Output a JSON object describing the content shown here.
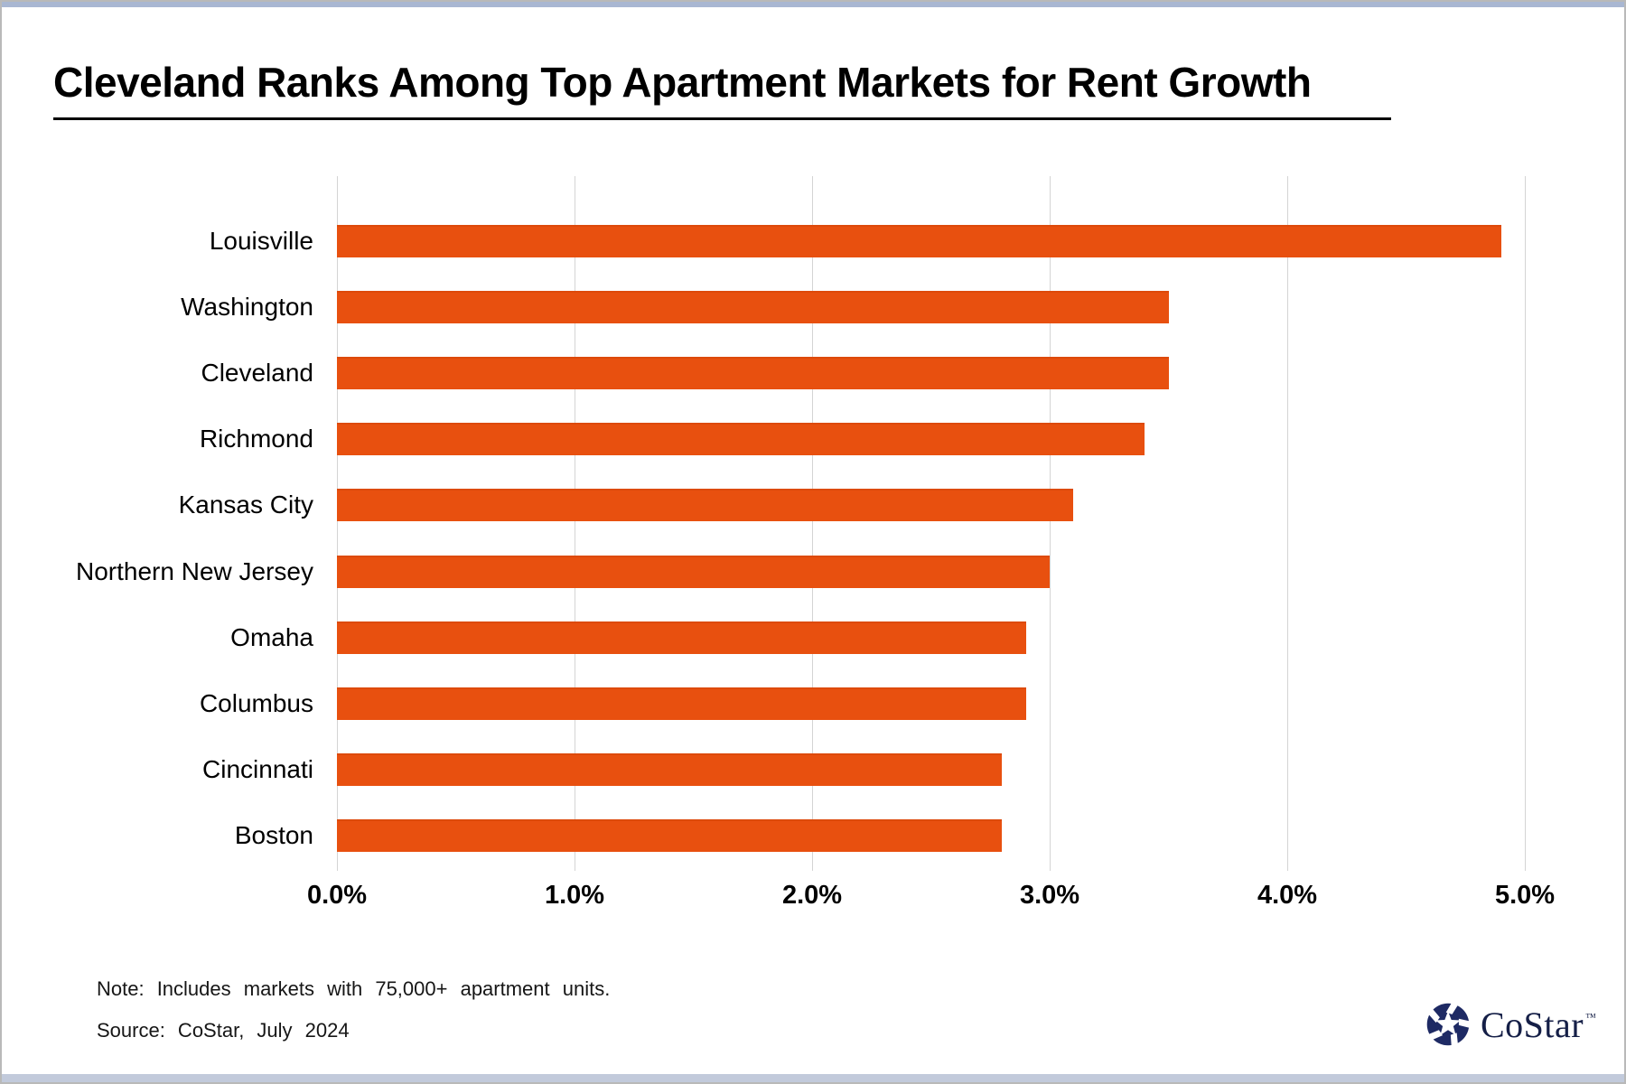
{
  "title": "Cleveland Ranks Among Top Apartment Markets for Rent Growth",
  "chart_data": {
    "type": "bar",
    "orientation": "horizontal",
    "title": "Cleveland Ranks Among Top Apartment Markets for Rent Growth",
    "categories": [
      "Louisville",
      "Washington",
      "Cleveland",
      "Richmond",
      "Kansas City",
      "Northern New Jersey",
      "Omaha",
      "Columbus",
      "Cincinnati",
      "Boston"
    ],
    "values": [
      4.9,
      3.5,
      3.5,
      3.4,
      3.1,
      3.0,
      2.9,
      2.9,
      2.8,
      2.8
    ],
    "unit": "%",
    "xlim": [
      0,
      5
    ],
    "x_ticks": [
      {
        "value": 0,
        "label": "0.0%"
      },
      {
        "value": 1,
        "label": "1.0%"
      },
      {
        "value": 2,
        "label": "2.0%"
      },
      {
        "value": 3,
        "label": "3.0%"
      },
      {
        "value": 4,
        "label": "4.0%"
      },
      {
        "value": 5,
        "label": "5.0%"
      }
    ],
    "grid": "vertical-only",
    "legend": "none",
    "bar_color": "#E8500F",
    "gridline_color": "#D4D4D4"
  },
  "footer": {
    "note": "Note: Includes markets with 75,000+ apartment units.",
    "source": "Source: CoStar, July 2024"
  },
  "logo": {
    "text": "CoStar",
    "trademark": "™",
    "color": "#1E2A64"
  }
}
